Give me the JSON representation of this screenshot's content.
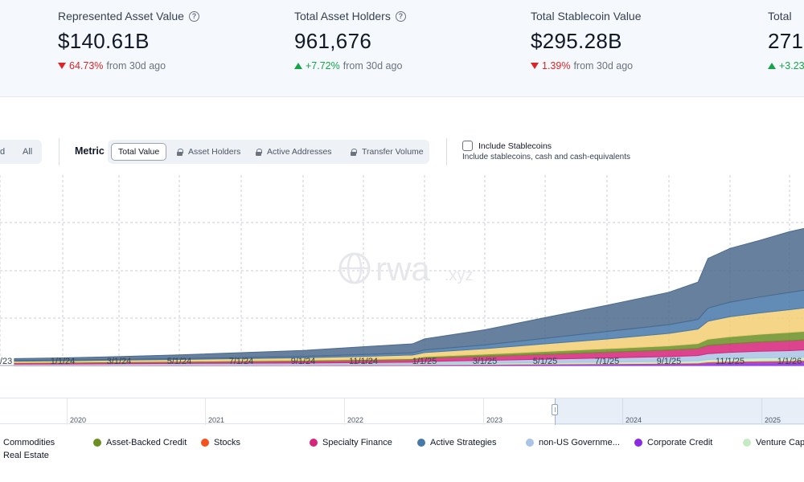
{
  "stats": [
    {
      "label": "Represented Asset Value",
      "has_info": true,
      "value": "$140.61B",
      "direction": "down",
      "change": "64.73%",
      "suffix": "from 30d ago"
    },
    {
      "label": "Total Asset Holders",
      "has_info": true,
      "value": "961,676",
      "direction": "up",
      "change": "+7.72%",
      "suffix": "from 30d ago"
    },
    {
      "label": "Total Stablecoin Value",
      "has_info": false,
      "value": "$295.28B",
      "direction": "down",
      "change": "1.39%",
      "suffix": "from 30d ago"
    },
    {
      "label": "Total",
      "has_info": false,
      "value": "271.",
      "direction": "up",
      "change": "+3.23",
      "suffix": ""
    }
  ],
  "controls": {
    "range_partial": "d",
    "range_all": "All",
    "metric_label": "Metric",
    "metrics": [
      {
        "label": "Total Value",
        "active": true,
        "locked": false
      },
      {
        "label": "Asset Holders",
        "active": false,
        "locked": true
      },
      {
        "label": "Active Addresses",
        "active": false,
        "locked": true
      },
      {
        "label": "Transfer Volume",
        "active": false,
        "locked": true
      }
    ],
    "stablecoins_label": "Include Stablecoins",
    "stablecoins_checked": false,
    "stablecoins_desc": "Include stablecoins, cash and cash-equivalents"
  },
  "watermark": {
    "main": "rwa",
    "sub": ".xyz"
  },
  "navigator": {
    "years": [
      "2020",
      "2021",
      "2022",
      "2023",
      "2024",
      "2025"
    ]
  },
  "chart_data": {
    "type": "area",
    "stacked": true,
    "title": "",
    "xlabel": "",
    "ylabel": "",
    "grid": true,
    "x_tick_labels": [
      "/23",
      "1/1/24",
      "3/1/24",
      "5/1/24",
      "7/1/24",
      "9/1/24",
      "11/1/24",
      "1/1/25",
      "3/1/25",
      "5/1/25",
      "7/1/25",
      "9/1/25",
      "11/1/25",
      "1/1/26"
    ],
    "x": [
      "2023-11-15",
      "2024-01-01",
      "2024-03-01",
      "2024-05-01",
      "2024-07-01",
      "2024-09-01",
      "2024-11-01",
      "2024-12-20",
      "2025-01-01",
      "2025-03-01",
      "2025-05-01",
      "2025-07-01",
      "2025-09-01",
      "2025-09-30",
      "2025-10-10",
      "2025-11-01",
      "2025-12-01",
      "2026-01-01",
      "2026-01-20"
    ],
    "series": [
      {
        "name": "Corporate Credit",
        "color": "#8a2be2",
        "values": [
          0.2,
          0.2,
          0.2,
          0.3,
          0.3,
          0.3,
          0.4,
          0.4,
          0.5,
          0.6,
          0.8,
          1.0,
          1.2,
          1.4,
          2.0,
          2.4,
          2.6,
          2.8,
          3.0
        ]
      },
      {
        "name": "Stocks",
        "color": "#f4511e",
        "values": [
          0.1,
          0.1,
          0.1,
          0.1,
          0.1,
          0.1,
          0.1,
          0.1,
          0.2,
          0.2,
          0.3,
          0.3,
          0.4,
          0.5,
          0.6,
          0.6,
          0.7,
          0.7,
          0.8
        ]
      },
      {
        "name": "Venture Capi",
        "color": "#c6ebc4",
        "values": [
          0.3,
          0.3,
          0.4,
          0.4,
          0.5,
          0.5,
          0.6,
          0.7,
          0.8,
          0.9,
          1.0,
          1.2,
          1.4,
          1.5,
          1.8,
          2.0,
          2.2,
          2.3,
          2.4
        ]
      },
      {
        "name": "non-US Governme...",
        "color": "#a9c4e6",
        "values": [
          0.4,
          0.5,
          0.6,
          0.7,
          0.8,
          0.9,
          1.0,
          1.2,
          1.5,
          2.0,
          2.5,
          3.0,
          3.5,
          3.8,
          4.2,
          4.5,
          4.8,
          5.0,
          5.2
        ]
      },
      {
        "name": "Specialty Finance",
        "color": "#d6247a",
        "values": [
          0.8,
          0.9,
          1.0,
          1.1,
          1.2,
          1.4,
          1.6,
          1.8,
          2.4,
          3.0,
          3.6,
          4.2,
          4.8,
          5.2,
          6.0,
          6.4,
          6.8,
          7.2,
          7.4
        ]
      },
      {
        "name": "Asset-Backed Credit",
        "color": "#6b8e23",
        "values": [
          0.3,
          0.3,
          0.4,
          0.4,
          0.5,
          0.6,
          0.7,
          0.8,
          1.0,
          1.5,
          2.0,
          2.5,
          3.0,
          3.5,
          4.5,
          5.0,
          5.5,
          6.0,
          6.2
        ]
      },
      {
        "name": "Commodities",
        "color": "#f3cf73",
        "values": [
          1.0,
          1.1,
          1.2,
          1.4,
          1.6,
          1.8,
          2.2,
          2.6,
          3.0,
          4.0,
          5.5,
          7.0,
          9.0,
          10.5,
          13.0,
          14.5,
          15.5,
          16.5,
          17.0
        ]
      },
      {
        "name": "Active Strategies",
        "color": "#4678a8",
        "values": [
          0.5,
          0.5,
          0.6,
          0.7,
          0.8,
          1.0,
          1.4,
          1.6,
          1.9,
          2.7,
          4.0,
          5.5,
          6.3,
          7.0,
          9.5,
          10.5,
          11.5,
          12.5,
          13.0
        ]
      },
      {
        "name": "Real Estate",
        "color": "#4b6a8d",
        "values": [
          1.4,
          1.6,
          2.0,
          2.6,
          3.5,
          4.3,
          5.6,
          6.5,
          8.0,
          11.0,
          15.0,
          19.0,
          23.5,
          27.0,
          36.0,
          39.0,
          41.0,
          44.0,
          45.0
        ]
      }
    ],
    "legend": [
      {
        "name": "Commodities",
        "color": "#3f6d23"
      },
      {
        "name": "Asset-Backed Credit",
        "color": "#6b8e23"
      },
      {
        "name": "Stocks",
        "color": "#f4511e"
      },
      {
        "name": "Specialty Finance",
        "color": "#d6247a"
      },
      {
        "name": "Active Strategies",
        "color": "#4678a8"
      },
      {
        "name": "non-US Governme...",
        "color": "#a9c4e6"
      },
      {
        "name": "Corporate Credit",
        "color": "#8a2be2"
      },
      {
        "name": "Venture Capi",
        "color": "#c6ebc4"
      },
      {
        "name": "Real Estate",
        "color": "#3d6fa6"
      }
    ],
    "legend_placement": "bottom"
  }
}
